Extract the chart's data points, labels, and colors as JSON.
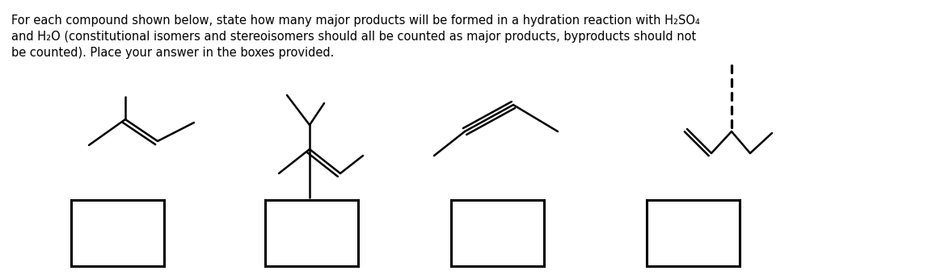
{
  "bg_color": "#ffffff",
  "text_color": "#000000",
  "line_color": "#000000",
  "title_text": "For each compound shown below, state how many major products will be formed in a hydration reaction with H₂SO₄\nand H₂O (constitutional isomers and stereoisomers should all be counted as major products, byproducts should not\nbe counted). Place your answer in the boxes provided.",
  "figw": 11.74,
  "figh": 3.41,
  "dpi": 100
}
